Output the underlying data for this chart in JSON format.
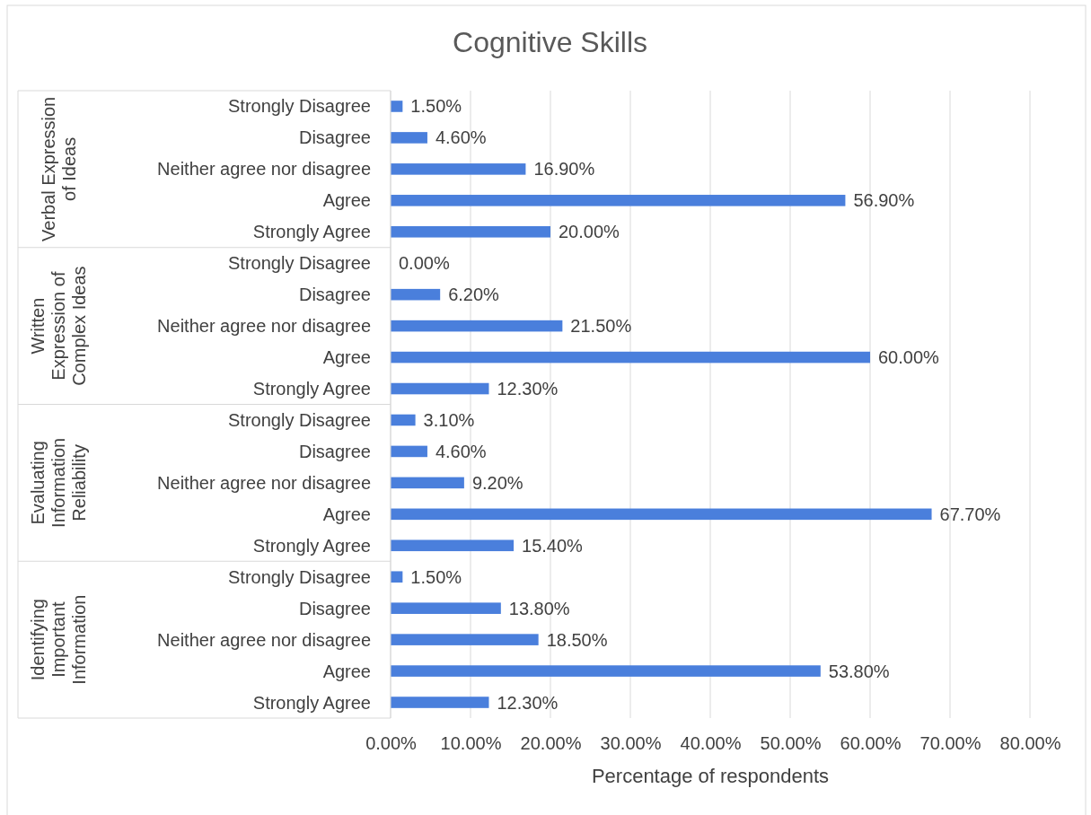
{
  "chart_data": {
    "type": "bar",
    "orientation": "horizontal",
    "title": "Cognitive Skills",
    "xlabel": "Percentage of respondents",
    "categories": [
      "Strongly Disagree",
      "Disagree",
      "Neither agree nor disagree",
      "Agree",
      "Strongly Agree",
      "Strongly Disagree",
      "Disagree",
      "Neither agree nor disagree",
      "Agree",
      "Strongly Agree",
      "Strongly Disagree",
      "Disagree",
      "Neither agree nor disagree",
      "Agree",
      "Strongly Agree",
      "Strongly Disagree",
      "Disagree",
      "Neither agree nor disagree",
      "Agree",
      "Strongly Agree"
    ],
    "values": [
      1.5,
      4.6,
      16.9,
      56.9,
      20.0,
      0.0,
      6.2,
      21.5,
      60.0,
      12.3,
      3.1,
      4.6,
      9.2,
      67.7,
      15.4,
      1.5,
      13.8,
      18.5,
      53.8,
      12.3
    ],
    "value_labels": [
      "1.50%",
      "4.60%",
      "16.90%",
      "56.90%",
      "20.00%",
      "0.00%",
      "6.20%",
      "21.50%",
      "60.00%",
      "12.30%",
      "3.10%",
      "4.60%",
      "9.20%",
      "67.70%",
      "15.40%",
      "1.50%",
      "13.80%",
      "18.50%",
      "53.80%",
      "12.30%"
    ],
    "color": "#4a7fdc",
    "xlim": [
      0,
      80
    ],
    "xticks": [
      {
        "value": 0,
        "label": "0.00%"
      },
      {
        "value": 10,
        "label": "10.00%"
      },
      {
        "value": 20,
        "label": "20.00%"
      },
      {
        "value": 30,
        "label": "30.00%"
      },
      {
        "value": 40,
        "label": "40.00%"
      },
      {
        "value": 50,
        "label": "50.00%"
      },
      {
        "value": 60,
        "label": "60.00%"
      },
      {
        "value": 70,
        "label": "70.00%"
      },
      {
        "value": 80,
        "label": "80.00%"
      }
    ],
    "grid": "x",
    "annotations": [
      "Verbal Expression of Ideas",
      "Written Expression of Complex Ideas",
      "Evaluating Information Reliability",
      "Identifying Important Information"
    ]
  }
}
